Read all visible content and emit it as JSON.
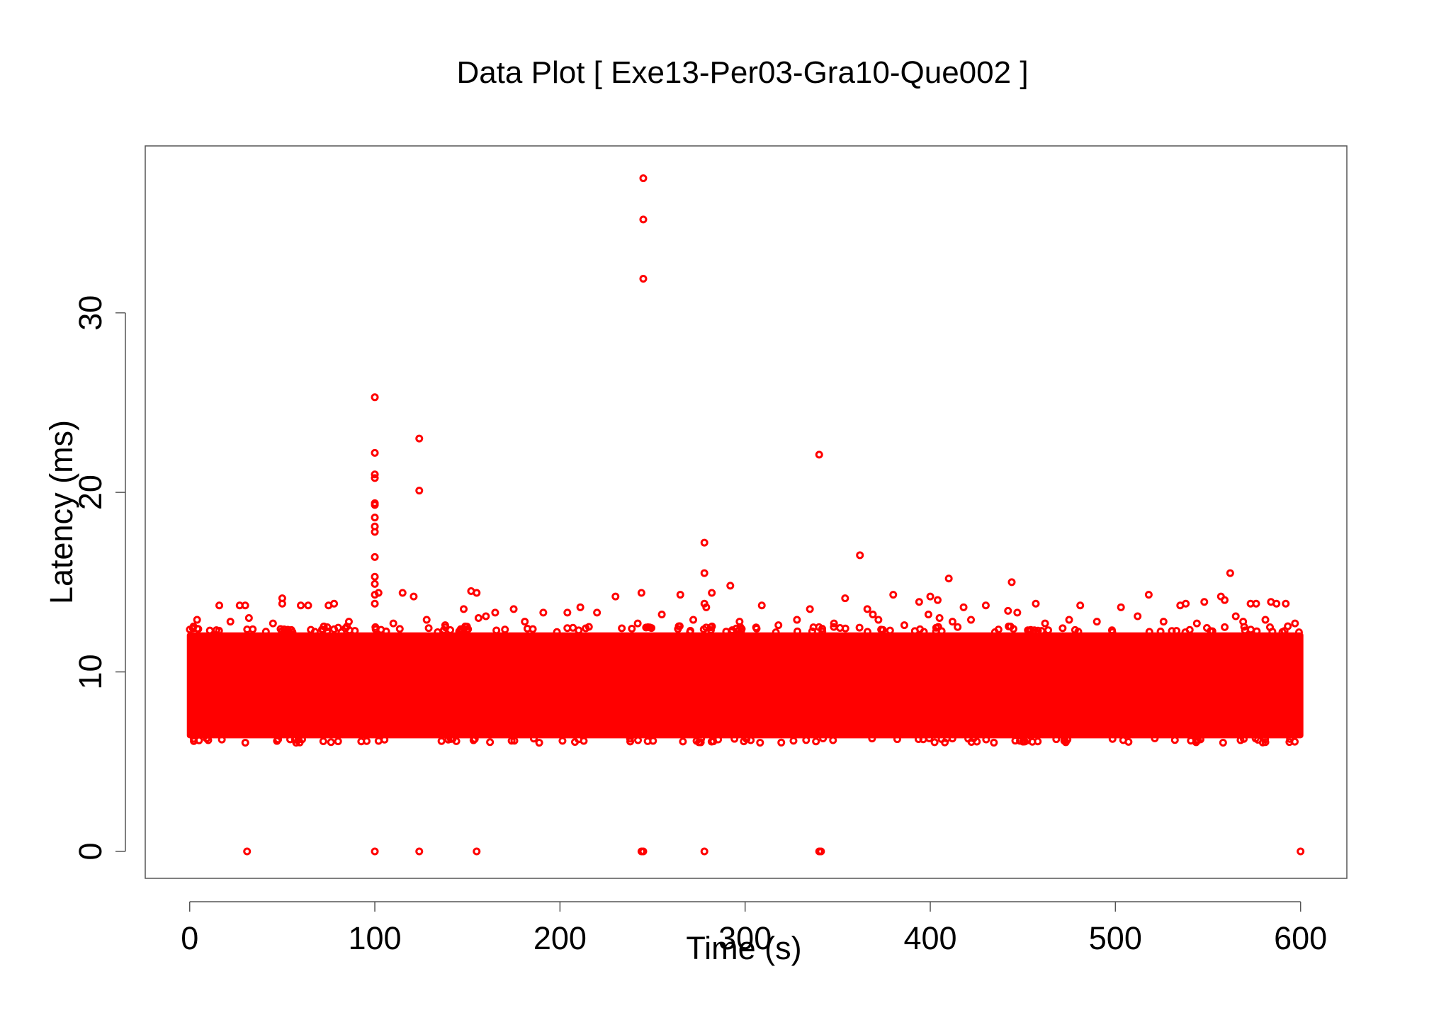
{
  "chart_data": {
    "type": "scatter",
    "title": "Data Plot [ Exe13-Per03-Gra10-Que002 ]",
    "xlabel": "Time (s)",
    "ylabel": "Latency (ms)",
    "xlim": [
      -24,
      625
    ],
    "ylim": [
      -1.5,
      39.3
    ],
    "xticks": [
      0,
      100,
      200,
      300,
      400,
      500,
      600
    ],
    "yticks": [
      0,
      10,
      20,
      30
    ],
    "grid": false,
    "legend": "none",
    "color": "#ff0000",
    "dense_band": {
      "x": [
        0,
        600
      ],
      "y": [
        6.3,
        12.2
      ]
    },
    "points": [
      [
        245,
        37.5
      ],
      [
        245,
        35.2
      ],
      [
        245,
        31.9
      ],
      [
        100,
        25.3
      ],
      [
        100,
        22.2
      ],
      [
        100,
        21.0
      ],
      [
        100,
        20.8
      ],
      [
        100,
        19.4
      ],
      [
        100,
        19.3
      ],
      [
        100,
        18.6
      ],
      [
        100,
        18.1
      ],
      [
        100,
        17.8
      ],
      [
        100,
        16.4
      ],
      [
        100,
        15.3
      ],
      [
        100,
        14.9
      ],
      [
        100,
        14.3
      ],
      [
        100,
        13.8
      ],
      [
        124,
        23.0
      ],
      [
        124,
        20.1
      ],
      [
        340,
        22.1
      ],
      [
        278,
        17.2
      ],
      [
        278,
        15.5
      ],
      [
        278,
        13.8
      ],
      [
        279,
        13.6
      ],
      [
        362,
        16.5
      ],
      [
        562,
        15.5
      ],
      [
        410,
        15.2
      ],
      [
        444,
        15.0
      ],
      [
        292,
        14.8
      ],
      [
        152,
        14.5
      ],
      [
        155,
        14.4
      ],
      [
        102,
        14.4
      ],
      [
        115,
        14.4
      ],
      [
        121,
        14.2
      ],
      [
        230,
        14.2
      ],
      [
        244,
        14.4
      ],
      [
        265,
        14.3
      ],
      [
        282,
        14.4
      ],
      [
        354,
        14.1
      ],
      [
        380,
        14.3
      ],
      [
        400,
        14.2
      ],
      [
        404,
        14.0
      ],
      [
        518,
        14.3
      ],
      [
        557,
        14.2
      ],
      [
        559,
        14.0
      ],
      [
        27,
        13.7
      ],
      [
        30,
        13.7
      ],
      [
        16,
        13.7
      ],
      [
        50,
        14.1
      ],
      [
        50,
        13.8
      ],
      [
        60,
        13.7
      ],
      [
        64,
        13.7
      ],
      [
        75,
        13.7
      ],
      [
        78,
        13.8
      ],
      [
        148,
        13.5
      ],
      [
        156,
        13.0
      ],
      [
        160,
        13.1
      ],
      [
        165,
        13.3
      ],
      [
        175,
        13.5
      ],
      [
        191,
        13.3
      ],
      [
        204,
        13.3
      ],
      [
        211,
        13.6
      ],
      [
        220,
        13.3
      ],
      [
        255,
        13.2
      ],
      [
        309,
        13.7
      ],
      [
        335,
        13.5
      ],
      [
        366,
        13.5
      ],
      [
        369,
        13.2
      ],
      [
        394,
        13.9
      ],
      [
        399,
        13.2
      ],
      [
        405,
        13.0
      ],
      [
        418,
        13.6
      ],
      [
        430,
        13.7
      ],
      [
        442,
        13.4
      ],
      [
        447,
        13.3
      ],
      [
        457,
        13.8
      ],
      [
        481,
        13.7
      ],
      [
        503,
        13.6
      ],
      [
        535,
        13.7
      ],
      [
        538,
        13.8
      ],
      [
        548,
        13.9
      ],
      [
        565,
        13.1
      ],
      [
        573,
        13.8
      ],
      [
        576,
        13.8
      ],
      [
        584,
        13.9
      ],
      [
        587,
        13.8
      ],
      [
        592,
        13.8
      ],
      [
        4,
        12.9
      ],
      [
        22,
        12.8
      ],
      [
        32,
        13.0
      ],
      [
        45,
        12.7
      ],
      [
        86,
        12.8
      ],
      [
        110,
        12.7
      ],
      [
        128,
        12.9
      ],
      [
        138,
        12.6
      ],
      [
        181,
        12.8
      ],
      [
        242,
        12.7
      ],
      [
        272,
        12.9
      ],
      [
        297,
        12.8
      ],
      [
        318,
        12.6
      ],
      [
        328,
        12.9
      ],
      [
        348,
        12.7
      ],
      [
        372,
        12.9
      ],
      [
        386,
        12.6
      ],
      [
        412,
        12.8
      ],
      [
        422,
        12.9
      ],
      [
        462,
        12.7
      ],
      [
        475,
        12.9
      ],
      [
        490,
        12.8
      ],
      [
        512,
        13.1
      ],
      [
        526,
        12.8
      ],
      [
        544,
        12.7
      ],
      [
        569,
        12.8
      ],
      [
        581,
        12.9
      ],
      [
        597,
        12.7
      ],
      [
        31,
        0
      ],
      [
        100,
        0
      ],
      [
        124,
        0
      ],
      [
        155,
        0
      ],
      [
        244,
        0
      ],
      [
        245,
        0
      ],
      [
        278,
        0
      ],
      [
        340,
        0
      ],
      [
        341,
        0
      ],
      [
        600,
        0
      ]
    ]
  }
}
